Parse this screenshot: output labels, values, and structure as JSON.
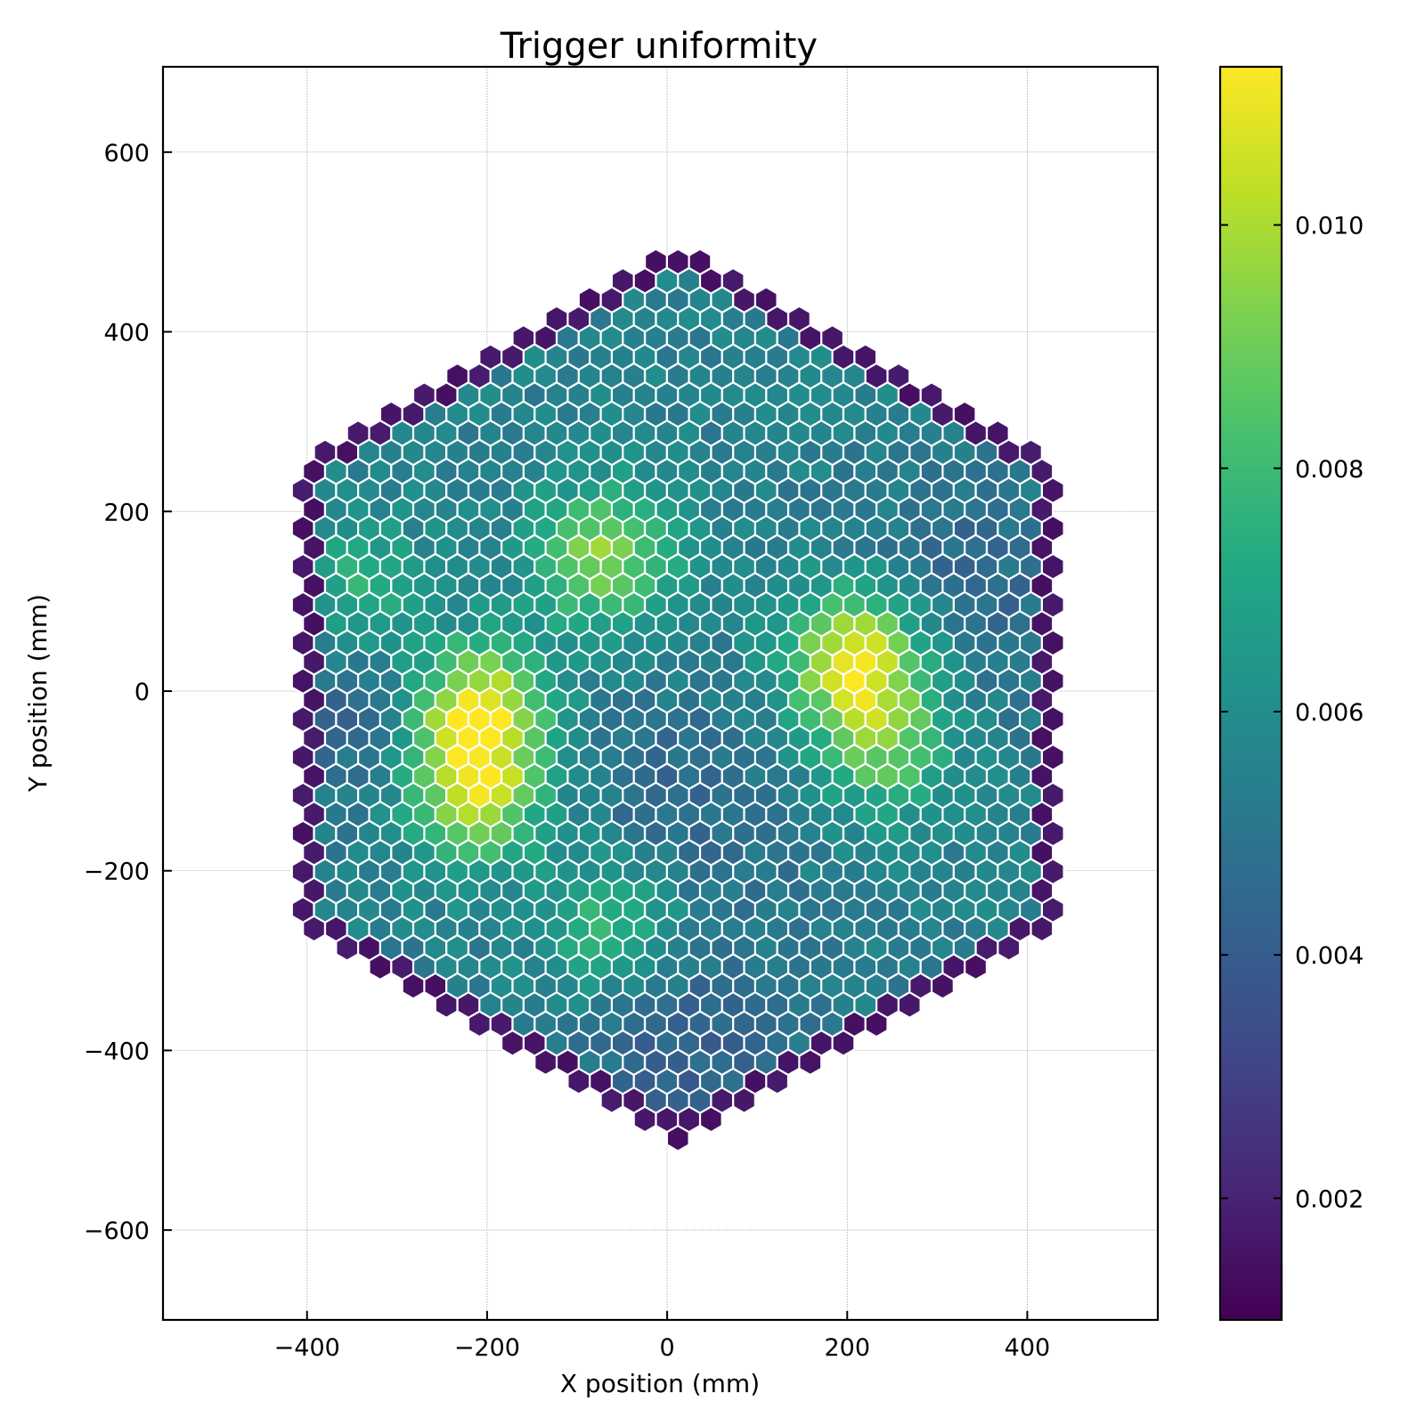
{
  "chart_data": {
    "type": "heatmap",
    "subtype": "hexagonal-pixel-camera",
    "title": "Trigger uniformity",
    "xlabel": "X position (mm)",
    "ylabel": "Y position (mm)",
    "xlim": [
      -560,
      545
    ],
    "ylim": [
      -700,
      695
    ],
    "xticks": [
      -400,
      -200,
      0,
      200,
      400
    ],
    "xtick_labels": [
      "−400",
      "−200",
      "0",
      "200",
      "400"
    ],
    "yticks": [
      600,
      400,
      200,
      0,
      -200,
      -400,
      -600
    ],
    "ytick_labels": [
      "600",
      "400",
      "200",
      "0",
      "−200",
      "−400",
      "−600"
    ],
    "grid": true,
    "colormap": "viridis",
    "colorbar": {
      "range": [
        0.001,
        0.0113
      ],
      "ticks": [
        0.002,
        0.004,
        0.006,
        0.008,
        0.01
      ],
      "tick_labels": [
        "0.002",
        "0.004",
        "0.006",
        "0.008",
        "0.010"
      ]
    },
    "camera": {
      "shape": "hexagon",
      "vertices_mm": [
        [
          12,
          498
        ],
        [
          432,
          255
        ],
        [
          432,
          -255
        ],
        [
          12,
          -498
        ],
        [
          -408,
          -255
        ],
        [
          -408,
          255
        ]
      ],
      "pixel_pitch_mm": 24.5,
      "edge_ring_value": 0.0014,
      "baseline_value": 0.0055,
      "hotspots": [
        {
          "x": -210,
          "y": -20,
          "peak": 0.0113
        },
        {
          "x": -215,
          "y": -120,
          "peak": 0.0098
        },
        {
          "x": 210,
          "y": 40,
          "peak": 0.0111
        },
        {
          "x": 240,
          "y": -60,
          "peak": 0.0088
        },
        {
          "x": -70,
          "y": 150,
          "peak": 0.0095
        },
        {
          "x": -60,
          "y": -260,
          "peak": 0.0082
        },
        {
          "x": -340,
          "y": 110,
          "peak": 0.008
        }
      ],
      "cool_regions": [
        {
          "x": 20,
          "y": -130,
          "value": 0.0045
        },
        {
          "x": 320,
          "y": 100,
          "value": 0.0044
        },
        {
          "x": -330,
          "y": 0,
          "value": 0.0042
        },
        {
          "x": 20,
          "y": -400,
          "value": 0.0042
        }
      ]
    }
  }
}
